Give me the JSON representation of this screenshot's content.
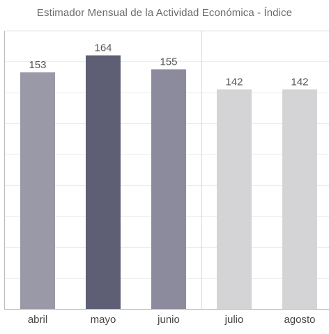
{
  "chart_data": {
    "type": "bar",
    "title": "Estimador Mensual de la Actividad Económica - Índice",
    "categories": [
      "abril",
      "mayo",
      "junio",
      "julio",
      "agosto"
    ],
    "values": [
      153,
      164,
      155,
      142,
      142
    ],
    "ylim": [
      0,
      180
    ],
    "grid": true,
    "bar_colors": [
      "#9a99a7",
      "#5e5f75",
      "#8c8b9d",
      "#d4d4d6",
      "#d4d4d6"
    ],
    "xlabel": "",
    "ylabel": ""
  },
  "colors": {
    "grid": "#ececec",
    "frame": "#bcbcbc",
    "divider": "#d8d8d8"
  }
}
